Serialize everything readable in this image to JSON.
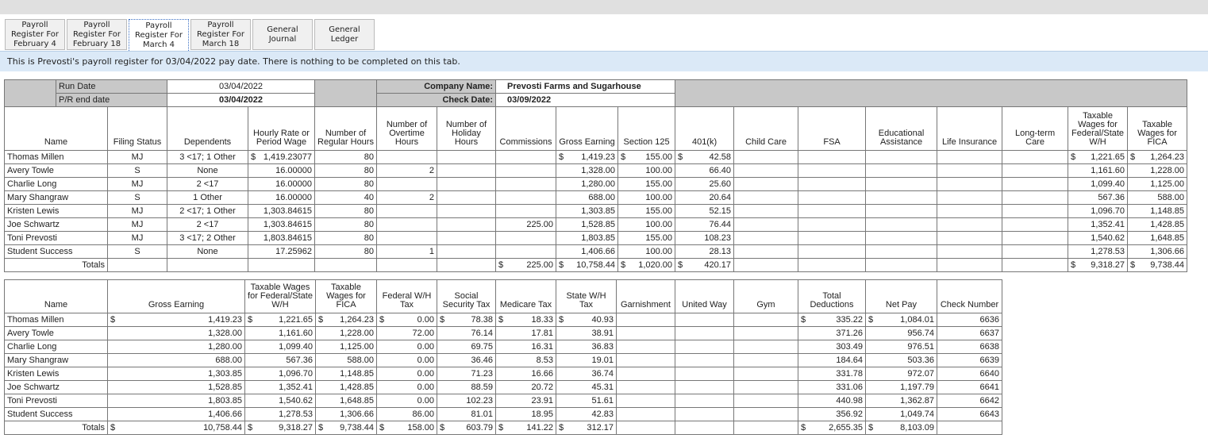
{
  "tabs": [
    "Payroll Register For February 4",
    "Payroll Register For February 18",
    "Payroll Register For March 4",
    "Payroll Register For March 18",
    "General Journal",
    "General Ledger"
  ],
  "active_tab": 2,
  "info_text": "This is Prevosti's payroll register for 03/04/2022 pay date. There is nothing to be completed on this tab.",
  "meta": {
    "run_date_label": "Run Date",
    "run_date": "03/04/2022",
    "pr_end_label": "P/R end date",
    "pr_end": "03/04/2022",
    "company_label": "Company Name:",
    "company": "Prevosti Farms and Sugarhouse",
    "check_date_label": "Check Date:",
    "check_date": "03/09/2022"
  },
  "currency_symbol": "$",
  "register": {
    "headers": [
      "Name",
      "Filing Status",
      "Dependents",
      "Hourly Rate or Period Wage",
      "Number of Regular Hours",
      "Number of Overtime Hours",
      "Number of Holiday Hours",
      "Commissions",
      "Gross Earning",
      "Section 125",
      "401(k)",
      "Child Care",
      "FSA",
      "Educational Assistance",
      "Life Insurance",
      "Long-term Care",
      "Taxable Wages for Federal/State W/H",
      "Taxable Wages for FICA"
    ],
    "rows": [
      {
        "cells": [
          "Thomas Millen",
          "MJ",
          "3 <17; 1 Other",
          "1,419.23077",
          "80",
          "",
          "",
          "",
          "1,419.23",
          "155.00",
          "42.58",
          "",
          "",
          "",
          "",
          "",
          "1,221.65",
          "1,264.23"
        ],
        "dollar": [
          3,
          8,
          9,
          10,
          16,
          17
        ]
      },
      {
        "cells": [
          "Avery Towle",
          "S",
          "None",
          "16.00000",
          "80",
          "2",
          "",
          "",
          "1,328.00",
          "100.00",
          "66.40",
          "",
          "",
          "",
          "",
          "",
          "1,161.60",
          "1,228.00"
        ],
        "dollar": []
      },
      {
        "cells": [
          "Charlie Long",
          "MJ",
          "2 <17",
          "16.00000",
          "80",
          "",
          "",
          "",
          "1,280.00",
          "155.00",
          "25.60",
          "",
          "",
          "",
          "",
          "",
          "1,099.40",
          "1,125.00"
        ],
        "dollar": []
      },
      {
        "cells": [
          "Mary Shangraw",
          "S",
          "1 Other",
          "16.00000",
          "40",
          "2",
          "",
          "",
          "688.00",
          "100.00",
          "20.64",
          "",
          "",
          "",
          "",
          "",
          "567.36",
          "588.00"
        ],
        "dollar": []
      },
      {
        "cells": [
          "Kristen Lewis",
          "MJ",
          "2 <17; 1 Other",
          "1,303.84615",
          "80",
          "",
          "",
          "",
          "1,303.85",
          "155.00",
          "52.15",
          "",
          "",
          "",
          "",
          "",
          "1,096.70",
          "1,148.85"
        ],
        "dollar": []
      },
      {
        "cells": [
          "Joe Schwartz",
          "MJ",
          "2 <17",
          "1,303.84615",
          "80",
          "",
          "",
          "225.00",
          "1,528.85",
          "100.00",
          "76.44",
          "",
          "",
          "",
          "",
          "",
          "1,352.41",
          "1,428.85"
        ],
        "dollar": []
      },
      {
        "cells": [
          "Toni Prevosti",
          "MJ",
          "3 <17; 2 Other",
          "1,803.84615",
          "80",
          "",
          "",
          "",
          "1,803.85",
          "155.00",
          "108.23",
          "",
          "",
          "",
          "",
          "",
          "1,540.62",
          "1,648.85"
        ],
        "dollar": []
      },
      {
        "cells": [
          "Student Success",
          "S",
          "None",
          "17.25962",
          "80",
          "1",
          "",
          "",
          "1,406.66",
          "100.00",
          "28.13",
          "",
          "",
          "",
          "",
          "",
          "1,278.53",
          "1,306.66"
        ],
        "dollar": []
      }
    ],
    "totals": {
      "label": "Totals",
      "cells": [
        "",
        "",
        "",
        "",
        "",
        "",
        "",
        "225.00",
        "10,758.44",
        "1,020.00",
        "420.17",
        "",
        "",
        "",
        "",
        "",
        "9,318.27",
        "9,738.44"
      ],
      "dollar": [
        7,
        8,
        9,
        10,
        16,
        17
      ]
    }
  },
  "deductions": {
    "headers": [
      "Name",
      "Gross Earning",
      "Taxable Wages for Federal/State W/H",
      "Taxable Wages for FICA",
      "Federal W/H Tax",
      "Social Security Tax",
      "Medicare Tax",
      "State W/H Tax",
      "Garnishment",
      "United Way",
      "Gym",
      "Total Deductions",
      "Net Pay",
      "Check Number"
    ],
    "rows": [
      {
        "cells": [
          "Thomas Millen",
          "1,419.23",
          "1,221.65",
          "1,264.23",
          "0.00",
          "78.38",
          "18.33",
          "40.93",
          "",
          "",
          "",
          "335.22",
          "1,084.01",
          "6636"
        ],
        "dollar": [
          1,
          2,
          3,
          4,
          5,
          6,
          7,
          11,
          12
        ]
      },
      {
        "cells": [
          "Avery Towle",
          "1,328.00",
          "1,161.60",
          "1,228.00",
          "72.00",
          "76.14",
          "17.81",
          "38.91",
          "",
          "",
          "",
          "371.26",
          "956.74",
          "6637"
        ],
        "dollar": []
      },
      {
        "cells": [
          "Charlie Long",
          "1,280.00",
          "1,099.40",
          "1,125.00",
          "0.00",
          "69.75",
          "16.31",
          "36.83",
          "",
          "",
          "",
          "303.49",
          "976.51",
          "6638"
        ],
        "dollar": []
      },
      {
        "cells": [
          "Mary Shangraw",
          "688.00",
          "567.36",
          "588.00",
          "0.00",
          "36.46",
          "8.53",
          "19.01",
          "",
          "",
          "",
          "184.64",
          "503.36",
          "6639"
        ],
        "dollar": []
      },
      {
        "cells": [
          "Kristen Lewis",
          "1,303.85",
          "1,096.70",
          "1,148.85",
          "0.00",
          "71.23",
          "16.66",
          "36.74",
          "",
          "",
          "",
          "331.78",
          "972.07",
          "6640"
        ],
        "dollar": []
      },
      {
        "cells": [
          "Joe Schwartz",
          "1,528.85",
          "1,352.41",
          "1,428.85",
          "0.00",
          "88.59",
          "20.72",
          "45.31",
          "",
          "",
          "",
          "331.06",
          "1,197.79",
          "6641"
        ],
        "dollar": []
      },
      {
        "cells": [
          "Toni Prevosti",
          "1,803.85",
          "1,540.62",
          "1,648.85",
          "0.00",
          "102.23",
          "23.91",
          "51.61",
          "",
          "",
          "",
          "440.98",
          "1,362.87",
          "6642"
        ],
        "dollar": []
      },
      {
        "cells": [
          "Student Success",
          "1,406.66",
          "1,278.53",
          "1,306.66",
          "86.00",
          "81.01",
          "18.95",
          "42.83",
          "",
          "",
          "",
          "356.92",
          "1,049.74",
          "6643"
        ],
        "dollar": []
      }
    ],
    "totals": {
      "label": "Totals",
      "cells": [
        "",
        "10,758.44",
        "9,318.27",
        "9,738.44",
        "158.00",
        "603.79",
        "141.22",
        "312.17",
        "",
        "",
        "",
        "2,655.35",
        "8,103.09",
        ""
      ],
      "dollar": [
        1,
        2,
        3,
        4,
        5,
        6,
        7,
        11,
        12
      ]
    }
  }
}
